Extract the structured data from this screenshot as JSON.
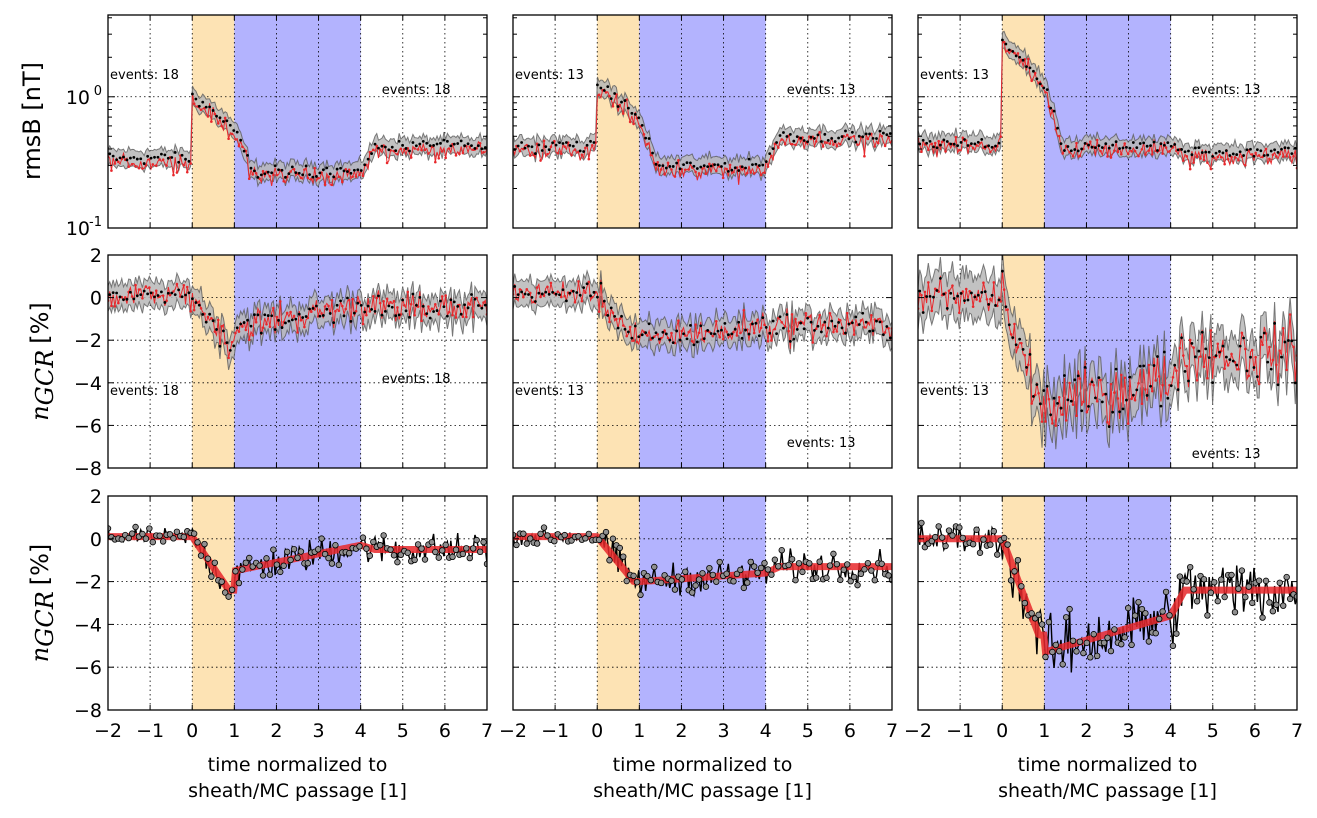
{
  "chart_data": {
    "type": "line",
    "layout": "3x3 grid",
    "colors": {
      "sheath_region": "#fde3b4",
      "mc_region": "#b3b3fe",
      "band_gray": "#b8b8b8",
      "band_edge_gray": "#606060",
      "band_blue_edge": "#3030a0",
      "red_series": "#e8282c",
      "mean_black": "#000000",
      "marker_fill": "#909090"
    },
    "x_axis": {
      "range": [
        -2,
        7
      ],
      "ticks": [
        "−2",
        "−1",
        "0",
        "1",
        "2",
        "3",
        "4",
        "5",
        "6",
        "7"
      ],
      "label_line1": "time normalized to",
      "label_line2": "sheath/MC passage [1]"
    },
    "regions": [
      {
        "name": "sheath",
        "x": [
          0,
          1
        ]
      },
      {
        "name": "magnetic cloud",
        "x": [
          1,
          4
        ]
      }
    ],
    "rows": [
      {
        "name": "rmsB",
        "ylabel": "rmsB [nT]",
        "yscale": "log",
        "ylim": [
          0.1,
          4.2
        ],
        "ytick_labels": [
          {
            "base": "10",
            "exp": "0",
            "value": 1
          },
          {
            "base": "10",
            "exp": "-1",
            "value": 0.1
          }
        ]
      },
      {
        "name": "nGCR",
        "ylabel": "n",
        "ylabel_sub": "GCR",
        "ylabel_unit": "[%]",
        "yscale": "linear",
        "ylim": [
          -8,
          2
        ],
        "yticks": [
          "2",
          "0",
          "−2",
          "−4",
          "−6",
          "−8"
        ]
      },
      {
        "name": "nGCR_fit",
        "ylabel": "n",
        "ylabel_sub": "GCR",
        "ylabel_unit": "[%]",
        "yscale": "linear",
        "ylim": [
          -8,
          2
        ],
        "yticks": [
          "2",
          "0",
          "−2",
          "−4",
          "−6",
          "−8"
        ]
      }
    ],
    "columns": [
      {
        "events_label_left": "events: 18",
        "events_label_right": "events: 18",
        "events_label_gcr_left": "events: 18",
        "events_label_gcr_right": "events: 18",
        "rmsB_profile": {
          "pre": 0.34,
          "peak": 1.0,
          "sheath_end": 0.55,
          "mc_level": 0.27,
          "post": 0.42
        },
        "gcr_profile": {
          "pre": 0.1,
          "sheath_min": -2.2,
          "mc_start": -1.4,
          "mc_end": -0.4,
          "post": -0.5
        },
        "fit_profile": {
          "pre": 0.1,
          "sheath_min": -2.4,
          "mc_start": -1.5,
          "mc_end": -0.3,
          "post": -0.5
        }
      },
      {
        "events_label_left": "events: 13",
        "events_label_right": "events: 13",
        "events_label_gcr_left": "events: 13",
        "events_label_gcr_right": "events: 13",
        "rmsB_profile": {
          "pre": 0.42,
          "peak": 1.25,
          "sheath_end": 0.65,
          "mc_level": 0.3,
          "post": 0.5
        },
        "gcr_profile": {
          "pre": 0.2,
          "sheath_min": -1.9,
          "mc_start": -1.9,
          "mc_end": -1.4,
          "post": -1.3
        },
        "fit_profile": {
          "pre": 0.1,
          "sheath_min": -2.0,
          "mc_start": -2.0,
          "mc_end": -1.6,
          "post": -1.3
        }
      },
      {
        "events_label_left": "events: 13",
        "events_label_right": "events: 13",
        "events_label_gcr_left": "events: 13",
        "events_label_gcr_right": "events: 13",
        "rmsB_profile": {
          "pre": 0.45,
          "peak": 2.7,
          "sheath_end": 1.2,
          "mc_level": 0.42,
          "post": 0.38
        },
        "gcr_profile": {
          "pre": 0.0,
          "sheath_min": -5.0,
          "mc_start": -5.2,
          "mc_end": -3.8,
          "post": -2.6
        },
        "fit_profile": {
          "pre": 0.0,
          "sheath_min": -4.5,
          "mc_start": -5.3,
          "mc_end": -3.6,
          "post": -2.4
        }
      }
    ]
  }
}
